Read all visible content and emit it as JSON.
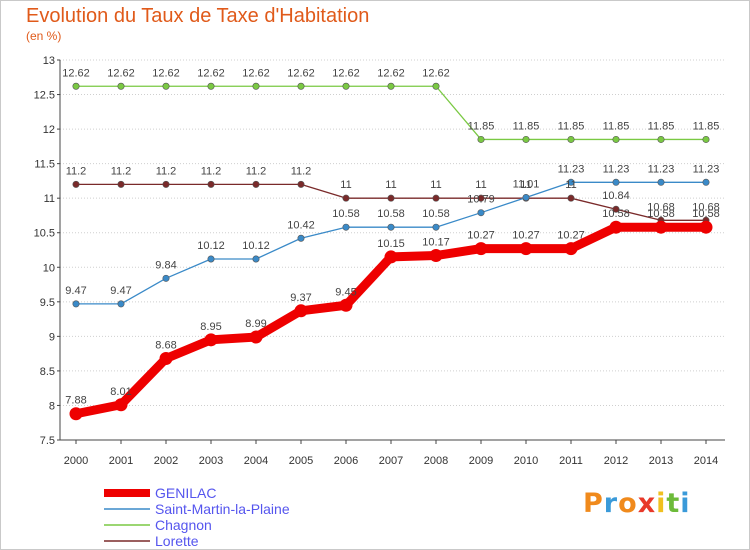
{
  "header": {
    "title": "Evolution du Taux de Taxe d'Habitation",
    "subtitle": "(en %)"
  },
  "brand": {
    "name": "Proxiti",
    "letters": [
      "P",
      "r",
      "o",
      "x",
      "i",
      "t",
      "i"
    ],
    "colors": [
      "#f08a1c",
      "#3a9ad9",
      "#f08a1c",
      "#e8392a",
      "#f0c020",
      "#6dbb3a",
      "#3a9ad9"
    ]
  },
  "chart_data": {
    "type": "line",
    "title": "Evolution du Taux de Taxe d'Habitation",
    "subtitle": "(en %)",
    "xlabel": "",
    "ylabel": "",
    "x": [
      "2000",
      "2001",
      "2002",
      "2003",
      "2004",
      "2005",
      "2006",
      "2007",
      "2008",
      "2009",
      "2010",
      "2011",
      "2012",
      "2013",
      "2014"
    ],
    "ylim": [
      7.5,
      13
    ],
    "yticks": [
      "7.5",
      "8",
      "8.5",
      "9",
      "9.5",
      "10",
      "10.5",
      "11",
      "11.5",
      "12",
      "12.5",
      "13"
    ],
    "grid": "horizontal dashed",
    "legend_position": "bottom-left",
    "series": [
      {
        "name": "GENILAC",
        "color": "#ee0000",
        "values": [
          7.88,
          8.01,
          8.68,
          8.95,
          8.99,
          9.37,
          9.45,
          10.15,
          10.17,
          10.27,
          10.27,
          10.27,
          10.58,
          10.58,
          10.58
        ],
        "labels": [
          "7.88",
          "8.01",
          "8.68",
          "8.95",
          "8.99",
          "9.37",
          "9.45",
          "10.15",
          "10.17",
          "10.27",
          "10.27",
          "10.27",
          "10.58",
          "10.58",
          "10.58"
        ]
      },
      {
        "name": "Saint-Martin-la-Plaine",
        "color": "#3a8ac8",
        "values": [
          9.47,
          9.47,
          9.84,
          10.12,
          10.12,
          10.42,
          10.58,
          10.58,
          10.58,
          10.79,
          11.01,
          11.23,
          11.23,
          11.23,
          11.23
        ],
        "labels": [
          "9.47",
          "9.47",
          "9.84",
          "10.12",
          "10.12",
          "10.42",
          "10.58",
          "10.58",
          "10.58",
          "10.79",
          "11.01",
          "11.23",
          "11.23",
          "11.23",
          "11.23"
        ]
      },
      {
        "name": "Chagnon",
        "color": "#7ac943",
        "values": [
          12.62,
          12.62,
          12.62,
          12.62,
          12.62,
          12.62,
          12.62,
          12.62,
          12.62,
          11.85,
          11.85,
          11.85,
          11.85,
          11.85,
          11.85
        ],
        "labels": [
          "12.62",
          "12.62",
          "12.62",
          "12.62",
          "12.62",
          "12.62",
          "12.62",
          "12.62",
          "12.62",
          "11.85",
          "11.85",
          "11.85",
          "11.85",
          "11.85",
          "11.85"
        ]
      },
      {
        "name": "Lorette",
        "color": "#7a2a2a",
        "values": [
          11.2,
          11.2,
          11.2,
          11.2,
          11.2,
          11.2,
          11,
          11,
          11,
          11,
          11,
          11,
          10.84,
          10.68,
          10.68
        ],
        "labels": [
          "11.2",
          "11.2",
          "11.2",
          "11.2",
          "11.2",
          "11.2",
          "11",
          "11",
          "11",
          "11",
          "11",
          "11",
          "10.84",
          "10.68",
          "10.68"
        ]
      }
    ]
  }
}
